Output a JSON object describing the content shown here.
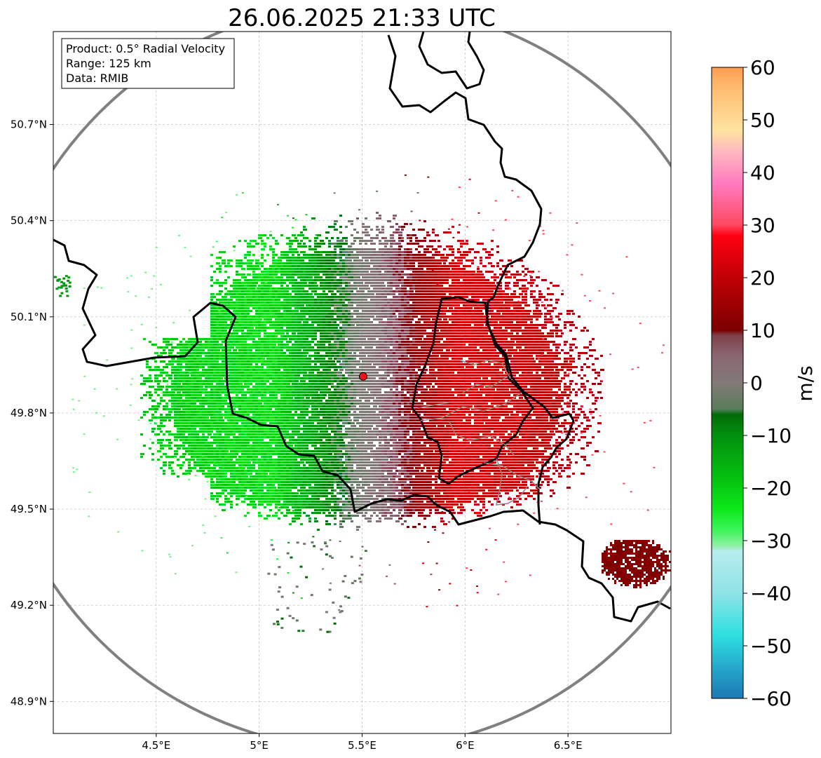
{
  "title": "26.06.2025 21:33 UTC",
  "info_box": {
    "product": "Product: 0.5° Radial Velocity",
    "range": "Range: 125 km",
    "data_source": "Data: RMIB"
  },
  "map": {
    "lon_range": [
      4.0,
      7.0
    ],
    "lat_range": [
      48.8,
      50.99
    ],
    "lon_ticks": [
      {
        "value": 4.5,
        "label": "4.5°E"
      },
      {
        "value": 5.0,
        "label": "5°E"
      },
      {
        "value": 5.5,
        "label": "5.5°E"
      },
      {
        "value": 6.0,
        "label": "6°E"
      },
      {
        "value": 6.5,
        "label": "6.5°E"
      }
    ],
    "lat_ticks": [
      {
        "value": 50.7,
        "label": "50.7°N"
      },
      {
        "value": 50.4,
        "label": "50.4°N"
      },
      {
        "value": 50.1,
        "label": "50.1°N"
      },
      {
        "value": 49.8,
        "label": "49.8°N"
      },
      {
        "value": 49.5,
        "label": "49.5°N"
      },
      {
        "value": 49.2,
        "label": "49.2°N"
      },
      {
        "value": 48.9,
        "label": "48.9°N"
      }
    ],
    "grid": true,
    "radar_site": {
      "lon": 5.505,
      "lat": 49.914
    },
    "range_ring_km": 125
  },
  "colorbar": {
    "label": "m/s",
    "min": -60,
    "max": 60,
    "ticks": [
      {
        "value": 60,
        "label": "60"
      },
      {
        "value": 50,
        "label": "50"
      },
      {
        "value": 40,
        "label": "40"
      },
      {
        "value": 30,
        "label": "30"
      },
      {
        "value": 20,
        "label": "20"
      },
      {
        "value": 10,
        "label": "10"
      },
      {
        "value": 0,
        "label": "0"
      },
      {
        "value": -10,
        "label": "−10"
      },
      {
        "value": -20,
        "label": "−20"
      },
      {
        "value": -30,
        "label": "−30"
      },
      {
        "value": -40,
        "label": "−40"
      },
      {
        "value": -50,
        "label": "−50"
      },
      {
        "value": -60,
        "label": "−60"
      }
    ],
    "stops": [
      {
        "value": -60,
        "color": "#1f78b4"
      },
      {
        "value": -54,
        "color": "#26a9cc"
      },
      {
        "value": -48,
        "color": "#2edfe0"
      },
      {
        "value": -40,
        "color": "#8fe3e6"
      },
      {
        "value": -32,
        "color": "#b8ecee"
      },
      {
        "value": -31,
        "color": "#8ef0a6"
      },
      {
        "value": -28,
        "color": "#3cf55a"
      },
      {
        "value": -24,
        "color": "#0ce81a"
      },
      {
        "value": -18,
        "color": "#05c010"
      },
      {
        "value": -10,
        "color": "#028f0e"
      },
      {
        "value": -6,
        "color": "#016a08"
      },
      {
        "value": -5,
        "color": "#5a7c5a"
      },
      {
        "value": 0,
        "color": "#827a78"
      },
      {
        "value": 5,
        "color": "#8a6872"
      },
      {
        "value": 9,
        "color": "#7d404a"
      },
      {
        "value": 10,
        "color": "#7c0000"
      },
      {
        "value": 20,
        "color": "#c00006"
      },
      {
        "value": 28,
        "color": "#ff0010"
      },
      {
        "value": 30,
        "color": "#ff4860"
      },
      {
        "value": 38,
        "color": "#ff7cc0"
      },
      {
        "value": 44,
        "color": "#ffb8c0"
      },
      {
        "value": 48,
        "color": "#ffe4a0"
      },
      {
        "value": 56,
        "color": "#ffbc70"
      },
      {
        "value": 60,
        "color": "#ff9c50"
      }
    ]
  },
  "colors": {
    "border": "#000000",
    "admin_border": "#888888",
    "range_ring": "#808080",
    "radar_marker": "#e8131d",
    "grid": "#bbbbbb"
  }
}
